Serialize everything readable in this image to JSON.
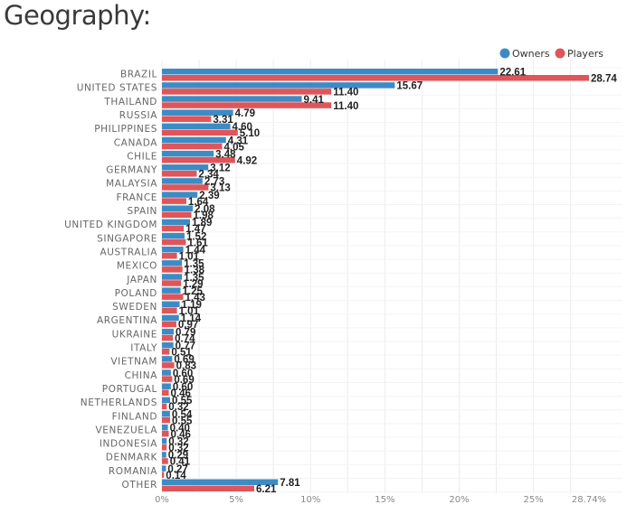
{
  "page": {
    "title": "Geography:"
  },
  "chart_data": {
    "type": "bar",
    "orientation": "horizontal",
    "title": "Geography:",
    "xlabel": "",
    "ylabel": "",
    "xlim": [
      0,
      28.74
    ],
    "x_unit": "%",
    "x_ticks": [
      "0%",
      "5%",
      "10%",
      "15%",
      "20%",
      "25%",
      "28.74%"
    ],
    "legend_position": "top-right",
    "categories": [
      "BRAZIL",
      "UNITED STATES",
      "THAILAND",
      "RUSSIA",
      "PHILIPPINES",
      "CANADA",
      "CHILE",
      "GERMANY",
      "MALAYSIA",
      "FRANCE",
      "SPAIN",
      "UNITED KINGDOM",
      "SINGAPORE",
      "AUSTRALIA",
      "MEXICO",
      "JAPAN",
      "POLAND",
      "SWEDEN",
      "ARGENTINA",
      "UKRAINE",
      "ITALY",
      "VIETNAM",
      "CHINA",
      "PORTUGAL",
      "NETHERLANDS",
      "FINLAND",
      "VENEZUELA",
      "INDONESIA",
      "DENMARK",
      "ROMANIA",
      "OTHER"
    ],
    "series": [
      {
        "name": "Owners",
        "color": "#3d8bc5",
        "values": [
          22.61,
          15.67,
          9.41,
          4.79,
          4.6,
          4.31,
          3.48,
          3.12,
          2.73,
          2.39,
          2.08,
          1.89,
          1.52,
          1.44,
          1.35,
          1.35,
          1.25,
          1.19,
          1.14,
          0.79,
          0.77,
          0.69,
          0.6,
          0.6,
          0.55,
          0.54,
          0.4,
          0.32,
          0.29,
          0.27,
          7.81
        ],
        "labels": [
          "22.61",
          "15.67",
          "9.41",
          "4.79",
          "4.60",
          "4.31",
          "3.48",
          "3.12",
          "2.73",
          "2.39",
          "2.08",
          "1.89",
          "1.52",
          "1.44",
          "1.35",
          "1.35",
          "1.25",
          "1.19",
          "1.14",
          "0.79",
          "0.77",
          "0.69",
          "0.60",
          "0.60",
          "0.55",
          "0.54",
          "0.40",
          "0.32",
          "0.29",
          "0.27",
          "7.81"
        ]
      },
      {
        "name": "Players",
        "color": "#e05559",
        "values": [
          28.74,
          11.4,
          11.4,
          3.31,
          5.1,
          4.05,
          4.92,
          2.34,
          3.13,
          1.64,
          1.98,
          1.47,
          1.61,
          1.01,
          1.38,
          1.29,
          1.43,
          1.01,
          0.97,
          0.74,
          0.51,
          0.83,
          0.69,
          0.46,
          0.32,
          0.55,
          0.46,
          0.32,
          0.41,
          0.14,
          6.21
        ],
        "labels": [
          "28.74",
          "11.40",
          "11.40",
          "3.31",
          "5.10",
          "4.05",
          "4.92",
          "2.34",
          "3.13",
          "1.64",
          "1.98",
          "1.47",
          "1.61",
          "1.01",
          "1.38",
          "1.29",
          "1.43",
          "1.01",
          "0.97",
          "0.74",
          "0.51",
          "0.83",
          "0.69",
          "0.46",
          "0.32",
          "0.55",
          "0.46",
          "0.32",
          "0.41",
          "0.14",
          "6.21"
        ]
      }
    ]
  }
}
